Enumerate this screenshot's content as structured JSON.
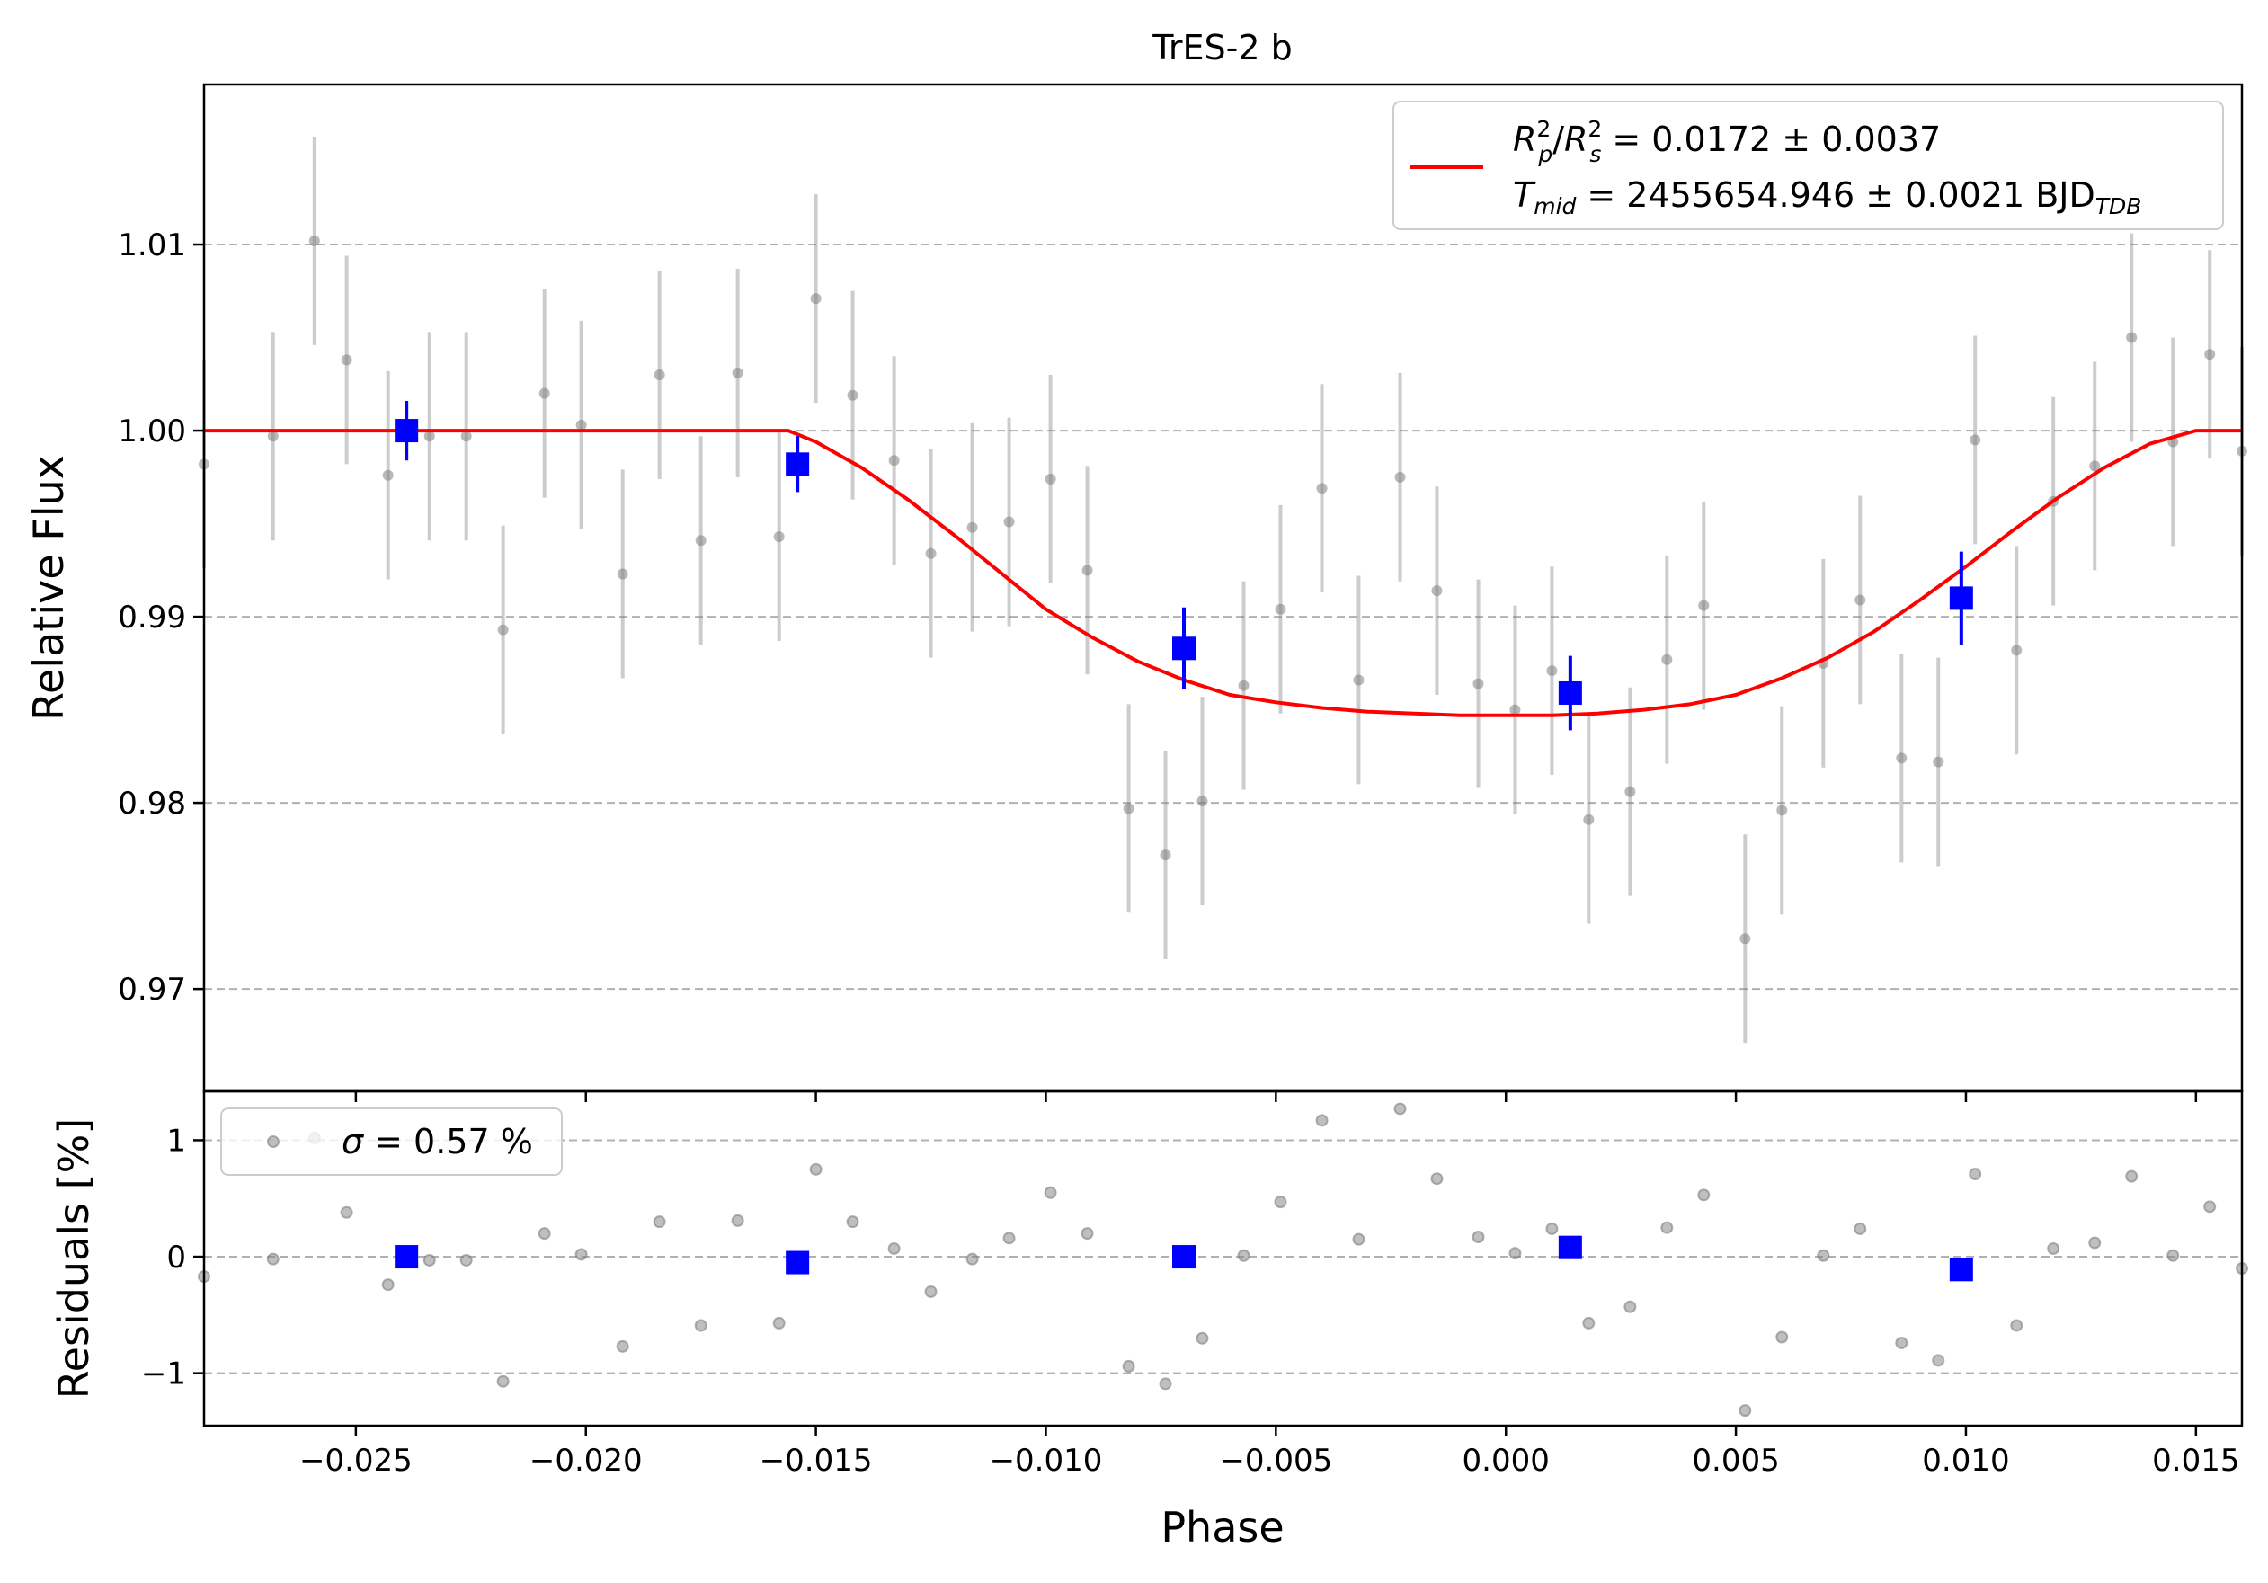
{
  "chart_data": {
    "type": "scatter",
    "title": "TrES-2 b",
    "xlabel": "Phase",
    "xlim": [
      -0.0283,
      0.016
    ],
    "xticks": [
      -0.025,
      -0.02,
      -0.015,
      -0.01,
      -0.005,
      0.0,
      0.005,
      0.01,
      0.015
    ],
    "xtick_labels": [
      "−0.025",
      "−0.020",
      "−0.015",
      "−0.010",
      "−0.005",
      "0.000",
      "0.005",
      "0.010",
      "0.015"
    ],
    "top_panel": {
      "ylabel": "Relative Flux",
      "ylim": [
        0.9645,
        1.0186
      ],
      "yticks": [
        0.97,
        0.98,
        0.99,
        1.0,
        1.01
      ],
      "ytick_labels": [
        "0.97",
        "0.98",
        "0.99",
        "1.00",
        "1.01"
      ],
      "grid": "horizontal dashed",
      "legend_position": "top-right",
      "legend": {
        "line1_main": "R",
        "line1_text": "= 0.0172 ± 0.0037",
        "line2_main": "T",
        "line2_sub": "mid",
        "line2_text": "= 2455654.946 ± 0.0021 BJD",
        "line2_suffix_sub": "TDB",
        "sub_p": "p",
        "sub_s": "s",
        "sup_2": "2"
      },
      "raw_points": {
        "color": "#808080",
        "x": [
          -0.0283,
          -0.0268,
          -0.0259,
          -0.0252,
          -0.0243,
          -0.0234,
          -0.0226,
          -0.0218,
          -0.0209,
          -0.0201,
          -0.0192,
          -0.0184,
          -0.0175,
          -0.0167,
          -0.0158,
          -0.015,
          -0.0142,
          -0.0133,
          -0.0125,
          -0.0116,
          -0.0108,
          -0.0099,
          -0.0091,
          -0.0082,
          -0.0074,
          -0.0066,
          -0.0057,
          -0.0049,
          -0.004,
          -0.0032,
          -0.0023,
          -0.0015,
          -0.0006,
          0.0002,
          0.001,
          0.0018,
          0.0027,
          0.0035,
          0.0043,
          0.0052,
          0.006,
          0.0069,
          0.0077,
          0.0086,
          0.0094,
          0.0102,
          0.0111,
          0.0119,
          0.0128,
          0.0136,
          0.0145,
          0.0153,
          0.016
        ],
        "y": [
          0.9982,
          0.9997,
          1.0102,
          1.0038,
          0.9976,
          0.9997,
          0.9997,
          0.9893,
          1.002,
          1.0003,
          0.9923,
          1.003,
          0.9941,
          1.0031,
          0.9943,
          1.0071,
          1.0019,
          0.9984,
          0.9934,
          0.9948,
          0.9951,
          0.9974,
          0.9925,
          0.9797,
          0.9772,
          0.9801,
          0.9863,
          0.9904,
          0.9969,
          0.9866,
          0.9975,
          0.9914,
          0.9864,
          0.985,
          0.9871,
          0.9791,
          0.9806,
          0.9877,
          0.9906,
          0.9727,
          0.9796,
          0.9875,
          0.9909,
          0.9824,
          0.9822,
          0.9995,
          0.9882,
          0.9962,
          0.9981,
          1.005,
          0.9994,
          1.0041,
          0.9989
        ],
        "yerr": 0.0056
      },
      "binned_points": {
        "color": "#0000ff",
        "x": [
          -0.0239,
          -0.0154,
          -0.007,
          0.0014,
          0.0099
        ],
        "y": [
          1.0,
          0.9982,
          0.9883,
          0.9859,
          0.991
        ],
        "yerr": [
          0.0016,
          0.0015,
          0.0022,
          0.002,
          0.0025
        ]
      },
      "model": {
        "color": "#ff0000",
        "x": [
          -0.0283,
          -0.0156,
          -0.015,
          -0.014,
          -0.013,
          -0.012,
          -0.011,
          -0.01,
          -0.009,
          -0.008,
          -0.007,
          -0.006,
          -0.005,
          -0.004,
          -0.003,
          -0.002,
          -0.001,
          0.0,
          0.001,
          0.002,
          0.003,
          0.004,
          0.005,
          0.006,
          0.007,
          0.008,
          0.009,
          0.01,
          0.011,
          0.012,
          0.013,
          0.014,
          0.015,
          0.016
        ],
        "y": [
          1.0,
          1.0,
          0.9994,
          0.998,
          0.9963,
          0.9944,
          0.9924,
          0.9904,
          0.9889,
          0.9876,
          0.9866,
          0.9858,
          0.9854,
          0.9851,
          0.9849,
          0.9848,
          0.9847,
          0.9847,
          0.9847,
          0.9848,
          0.985,
          0.9853,
          0.9858,
          0.9867,
          0.9878,
          0.9892,
          0.9909,
          0.9927,
          0.9946,
          0.9964,
          0.998,
          0.9993,
          1.0,
          1.0
        ]
      }
    },
    "bottom_panel": {
      "ylabel": "Residuals [%]",
      "ylim": [
        -1.45,
        1.42
      ],
      "yticks": [
        -1,
        0,
        1
      ],
      "ytick_labels": [
        "−1",
        "0",
        "1"
      ],
      "grid": "horizontal dashed",
      "legend_position": "top-left",
      "legend_symbol": "σ",
      "legend_text": "= 0.57 %",
      "raw_residuals": {
        "color": "#808080",
        "x": [
          -0.0283,
          -0.0268,
          -0.0259,
          -0.0252,
          -0.0243,
          -0.0234,
          -0.0226,
          -0.0218,
          -0.0209,
          -0.0201,
          -0.0192,
          -0.0184,
          -0.0175,
          -0.0167,
          -0.0158,
          -0.015,
          -0.0142,
          -0.0133,
          -0.0125,
          -0.0116,
          -0.0108,
          -0.0099,
          -0.0091,
          -0.0082,
          -0.0074,
          -0.0066,
          -0.0057,
          -0.0049,
          -0.004,
          -0.0032,
          -0.0023,
          -0.0015,
          -0.0006,
          0.0002,
          0.001,
          0.0018,
          0.0027,
          0.0035,
          0.0043,
          0.0052,
          0.006,
          0.0069,
          0.0077,
          0.0086,
          0.0094,
          0.0102,
          0.0111,
          0.0119,
          0.0128,
          0.0136,
          0.0145,
          0.0153,
          0.016
        ],
        "y": [
          -0.17,
          -0.02,
          1.02,
          0.38,
          -0.24,
          -0.03,
          -0.03,
          -1.07,
          0.2,
          0.02,
          -0.77,
          0.3,
          -0.59,
          0.31,
          -0.57,
          0.75,
          0.3,
          0.07,
          -0.3,
          -0.02,
          0.16,
          0.55,
          0.2,
          -0.94,
          -1.09,
          -0.7,
          0.01,
          0.47,
          1.17,
          0.15,
          1.27,
          0.67,
          0.17,
          0.03,
          0.24,
          -0.57,
          -0.43,
          0.25,
          0.53,
          -1.32,
          -0.69,
          0.01,
          0.24,
          -0.74,
          -0.89,
          0.71,
          -0.59,
          0.07,
          0.12,
          0.69,
          0.01,
          0.43,
          -0.1
        ]
      },
      "binned_residuals": {
        "color": "#0000ff",
        "x": [
          -0.0239,
          -0.0154,
          -0.007,
          0.0014,
          0.0099
        ],
        "y": [
          0.0,
          -0.05,
          0.0,
          0.08,
          -0.11
        ]
      }
    }
  }
}
